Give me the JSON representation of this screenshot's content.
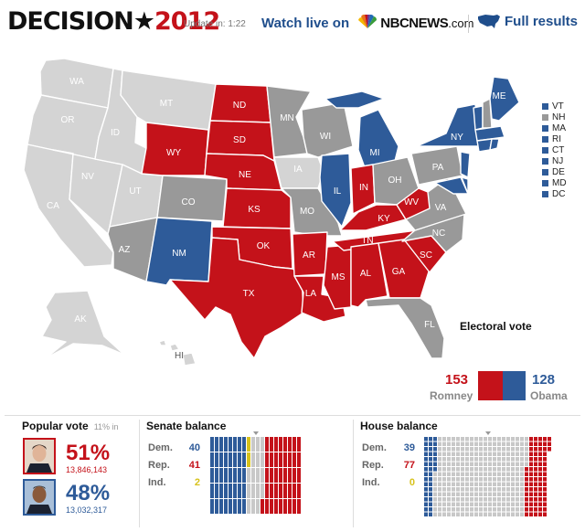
{
  "header": {
    "logo_word": "DECISION",
    "logo_star": "★",
    "logo_year": "2012",
    "update_text": "Update in: 1:22",
    "watch_text": "Watch live on",
    "nbc_text": "NBCNEWS",
    "nbc_suffix": ".com",
    "full_results": "Full results"
  },
  "colors": {
    "romney": "#c4121a",
    "obama": "#2e5b99",
    "gray": "#999999",
    "uncalled": "#d4d4d4",
    "independent": "#d7c21b"
  },
  "map": {
    "states": [
      {
        "abbr": "WA",
        "status": "uncalled"
      },
      {
        "abbr": "OR",
        "status": "uncalled"
      },
      {
        "abbr": "CA",
        "status": "uncalled"
      },
      {
        "abbr": "NV",
        "status": "uncalled"
      },
      {
        "abbr": "ID",
        "status": "uncalled"
      },
      {
        "abbr": "MT",
        "status": "uncalled"
      },
      {
        "abbr": "UT",
        "status": "uncalled"
      },
      {
        "abbr": "AZ",
        "status": "reporting"
      },
      {
        "abbr": "WY",
        "status": "romney"
      },
      {
        "abbr": "CO",
        "status": "reporting"
      },
      {
        "abbr": "NM",
        "status": "obama"
      },
      {
        "abbr": "ND",
        "status": "romney"
      },
      {
        "abbr": "SD",
        "status": "romney"
      },
      {
        "abbr": "NE",
        "status": "romney"
      },
      {
        "abbr": "KS",
        "status": "romney"
      },
      {
        "abbr": "OK",
        "status": "romney"
      },
      {
        "abbr": "TX",
        "status": "romney"
      },
      {
        "abbr": "MN",
        "status": "reporting"
      },
      {
        "abbr": "IA",
        "status": "uncalled"
      },
      {
        "abbr": "MO",
        "status": "reporting"
      },
      {
        "abbr": "AR",
        "status": "romney"
      },
      {
        "abbr": "LA",
        "status": "romney"
      },
      {
        "abbr": "WI",
        "status": "reporting"
      },
      {
        "abbr": "IL",
        "status": "obama"
      },
      {
        "abbr": "MS",
        "status": "romney"
      },
      {
        "abbr": "MI",
        "status": "obama"
      },
      {
        "abbr": "IN",
        "status": "romney"
      },
      {
        "abbr": "KY",
        "status": "romney"
      },
      {
        "abbr": "TN",
        "status": "romney"
      },
      {
        "abbr": "AL",
        "status": "romney"
      },
      {
        "abbr": "OH",
        "status": "reporting"
      },
      {
        "abbr": "WV",
        "status": "romney"
      },
      {
        "abbr": "GA",
        "status": "romney"
      },
      {
        "abbr": "FL",
        "status": "reporting"
      },
      {
        "abbr": "SC",
        "status": "romney"
      },
      {
        "abbr": "NC",
        "status": "reporting"
      },
      {
        "abbr": "VA",
        "status": "reporting"
      },
      {
        "abbr": "PA",
        "status": "reporting"
      },
      {
        "abbr": "NY",
        "status": "obama"
      },
      {
        "abbr": "ME",
        "status": "obama"
      },
      {
        "abbr": "AK",
        "status": "uncalled"
      },
      {
        "abbr": "HI",
        "status": "uncalled"
      }
    ],
    "northeast_legend": [
      {
        "abbr": "VT",
        "status": "obama"
      },
      {
        "abbr": "NH",
        "status": "reporting"
      },
      {
        "abbr": "MA",
        "status": "obama"
      },
      {
        "abbr": "RI",
        "status": "obama"
      },
      {
        "abbr": "CT",
        "status": "obama"
      },
      {
        "abbr": "NJ",
        "status": "obama"
      },
      {
        "abbr": "DE",
        "status": "obama"
      },
      {
        "abbr": "MD",
        "status": "obama"
      },
      {
        "abbr": "DC",
        "status": "obama"
      }
    ]
  },
  "electoral": {
    "title": "Electoral vote",
    "romney": {
      "votes": "153",
      "name": "Romney"
    },
    "obama": {
      "votes": "128",
      "name": "Obama"
    }
  },
  "popular": {
    "title": "Popular vote",
    "reporting": "11% in",
    "romney": {
      "pct": "51%",
      "votes": "13,846,143",
      "portrait": "romney-portrait-icon"
    },
    "obama": {
      "pct": "48%",
      "votes": "13,032,317",
      "portrait": "obama-portrait-icon"
    }
  },
  "senate": {
    "title": "Senate balance",
    "rows": [
      {
        "label": "Dem.",
        "value": "40"
      },
      {
        "label": "Rep.",
        "value": "41"
      },
      {
        "label": "Ind.",
        "value": "2"
      }
    ],
    "grid_cells": {
      "dem": 40,
      "ind": 2,
      "undecided": 17,
      "rep": 41
    }
  },
  "house": {
    "title": "House balance",
    "rows": [
      {
        "label": "Dem.",
        "value": "39"
      },
      {
        "label": "Rep.",
        "value": "77"
      },
      {
        "label": "Ind.",
        "value": "0"
      }
    ],
    "grid_cells": {
      "dem": 39,
      "ind": 0,
      "undecided": 319,
      "rep": 77
    }
  }
}
